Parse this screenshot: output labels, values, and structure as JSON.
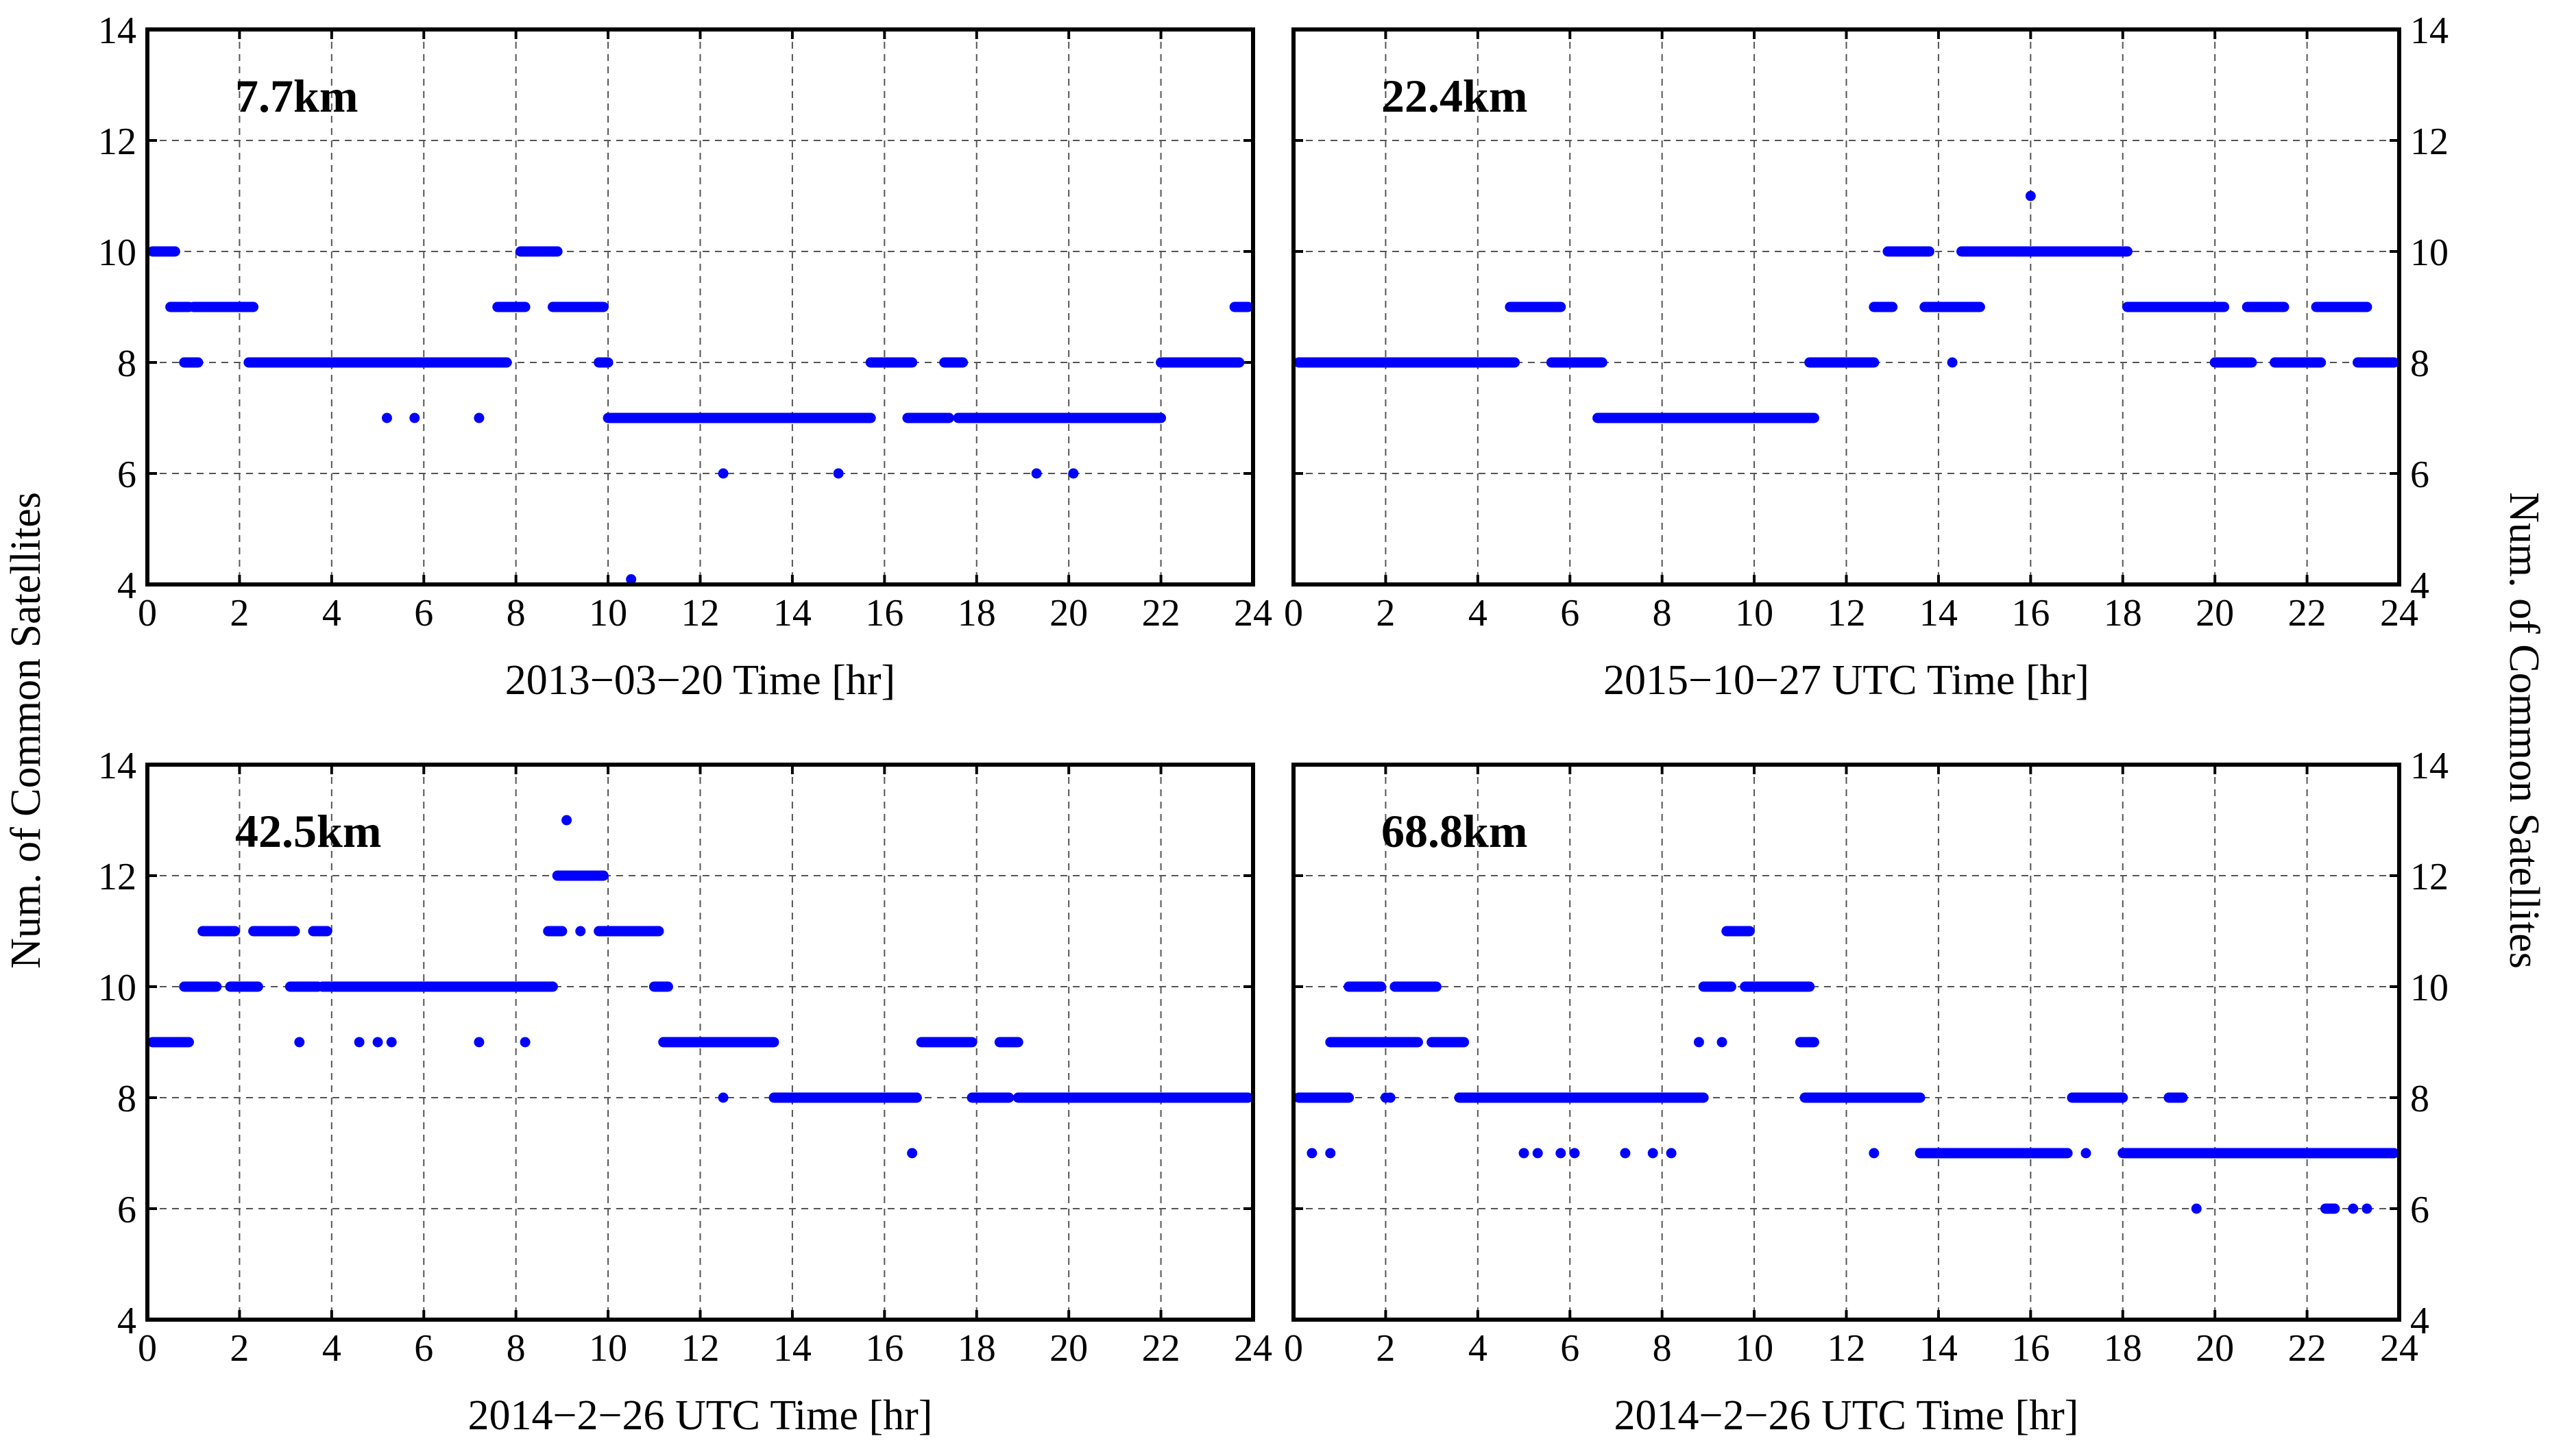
{
  "figure": {
    "ylabel_left": "Num. of Common Satellites",
    "ylabel_right": "Num. of Common Satellites",
    "marker_color": "#0000ff"
  },
  "chart_data": [
    {
      "type": "scatter",
      "panel": "top-left",
      "annotation": "7.7km",
      "xlabel": "2013−03−20 Time [hr]",
      "ylabel": "Num. of Common Satellites",
      "xlim": [
        0,
        24
      ],
      "ylim": [
        4,
        14
      ],
      "xticks": [
        0,
        2,
        4,
        6,
        8,
        10,
        12,
        14,
        16,
        18,
        20,
        22,
        24
      ],
      "yticks": [
        4,
        6,
        8,
        10,
        12,
        14
      ],
      "grid": true,
      "series": [
        {
          "name": "common satellites",
          "segments": [
            [
              0,
              0.6,
              10
            ],
            [
              0.5,
              0.9,
              9
            ],
            [
              0.8,
              1.1,
              8
            ],
            [
              1.0,
              2.3,
              9
            ],
            [
              2.2,
              7.8,
              8
            ],
            [
              7.6,
              8.2,
              9
            ],
            [
              8.1,
              8.9,
              10
            ],
            [
              8.8,
              9.9,
              9
            ],
            [
              9.8,
              10.0,
              8
            ],
            [
              10.0,
              15.7,
              7
            ],
            [
              15.7,
              16.6,
              8
            ],
            [
              16.5,
              17.4,
              7
            ],
            [
              17.3,
              17.7,
              8
            ],
            [
              17.6,
              22.0,
              7
            ],
            [
              22.0,
              23.7,
              8
            ],
            [
              23.6,
              24,
              9
            ]
          ],
          "points": [
            [
              5.2,
              7
            ],
            [
              5.8,
              7
            ],
            [
              7.2,
              7
            ],
            [
              10.5,
              4
            ],
            [
              12.5,
              6
            ],
            [
              15.0,
              6
            ],
            [
              19.3,
              6
            ],
            [
              20.1,
              6
            ]
          ]
        }
      ]
    },
    {
      "type": "scatter",
      "panel": "top-right",
      "annotation": "22.4km",
      "xlabel": "2015−10−27 UTC Time [hr]",
      "ylabel": "Num. of Common Satellites",
      "xlim": [
        0,
        24
      ],
      "ylim": [
        4,
        14
      ],
      "xticks": [
        0,
        2,
        4,
        6,
        8,
        10,
        12,
        14,
        16,
        18,
        20,
        22,
        24
      ],
      "yticks": [
        4,
        6,
        8,
        10,
        12,
        14
      ],
      "grid": true,
      "series": [
        {
          "name": "common satellites",
          "segments": [
            [
              0,
              4.8,
              8
            ],
            [
              4.7,
              5.8,
              9
            ],
            [
              5.6,
              6.7,
              8
            ],
            [
              6.6,
              11.3,
              7
            ],
            [
              11.2,
              12.6,
              8
            ],
            [
              12.6,
              13.0,
              9
            ],
            [
              12.9,
              13.8,
              10
            ],
            [
              13.7,
              14.9,
              9
            ],
            [
              14.5,
              18.1,
              10
            ],
            [
              18.1,
              20.2,
              9
            ],
            [
              20.0,
              20.8,
              8
            ],
            [
              20.7,
              21.5,
              9
            ],
            [
              21.3,
              22.3,
              8
            ],
            [
              22.2,
              23.3,
              9
            ],
            [
              23.1,
              24,
              8
            ]
          ],
          "points": [
            [
              16.0,
              11
            ],
            [
              14.3,
              8
            ]
          ]
        }
      ]
    },
    {
      "type": "scatter",
      "panel": "bottom-left",
      "annotation": "42.5km",
      "xlabel": "2014−2−26 UTC Time [hr]",
      "ylabel": "Num. of Common Satellites",
      "xlim": [
        0,
        24
      ],
      "ylim": [
        4,
        14
      ],
      "xticks": [
        0,
        2,
        4,
        6,
        8,
        10,
        12,
        14,
        16,
        18,
        20,
        22,
        24
      ],
      "yticks": [
        4,
        6,
        8,
        10,
        12,
        14
      ],
      "grid": true,
      "series": [
        {
          "name": "common satellites",
          "segments": [
            [
              0,
              0.9,
              9
            ],
            [
              0.8,
              1.5,
              10
            ],
            [
              1.2,
              1.9,
              11
            ],
            [
              1.8,
              2.4,
              10
            ],
            [
              2.3,
              3.2,
              11
            ],
            [
              3.1,
              3.7,
              10
            ],
            [
              3.6,
              3.9,
              11
            ],
            [
              3.8,
              8.8,
              10
            ],
            [
              8.7,
              9.0,
              11
            ],
            [
              8.9,
              9.9,
              12
            ],
            [
              9.8,
              11.1,
              11
            ],
            [
              11.0,
              11.3,
              10
            ],
            [
              11.2,
              13.6,
              9
            ],
            [
              13.6,
              16.7,
              8
            ],
            [
              16.8,
              17.9,
              9
            ],
            [
              17.9,
              18.7,
              8
            ],
            [
              18.5,
              18.9,
              9
            ],
            [
              18.9,
              24,
              8
            ]
          ],
          "points": [
            [
              9.1,
              13
            ],
            [
              9.4,
              11
            ],
            [
              3.3,
              9
            ],
            [
              4.6,
              9
            ],
            [
              5.0,
              9
            ],
            [
              5.3,
              9
            ],
            [
              7.2,
              9
            ],
            [
              8.2,
              9
            ],
            [
              12.5,
              8
            ],
            [
              16.6,
              7
            ]
          ]
        }
      ]
    },
    {
      "type": "scatter",
      "panel": "bottom-right",
      "annotation": "68.8km",
      "xlabel": "2014−2−26 UTC Time [hr]",
      "ylabel": "Num. of Common Satellites",
      "xlim": [
        0,
        24
      ],
      "ylim": [
        4,
        14
      ],
      "xticks": [
        0,
        2,
        4,
        6,
        8,
        10,
        12,
        14,
        16,
        18,
        20,
        22,
        24
      ],
      "yticks": [
        4,
        6,
        8,
        10,
        12,
        14
      ],
      "grid": true,
      "series": [
        {
          "name": "common satellites",
          "segments": [
            [
              0,
              1.2,
              8
            ],
            [
              0.8,
              1.3,
              9
            ],
            [
              1.2,
              1.9,
              10
            ],
            [
              1.2,
              2.7,
              9
            ],
            [
              2.2,
              3.1,
              10
            ],
            [
              3.0,
              3.7,
              9
            ],
            [
              3.6,
              8.9,
              8
            ],
            [
              8.9,
              9.5,
              10
            ],
            [
              9.4,
              9.9,
              11
            ],
            [
              9.8,
              11.2,
              10
            ],
            [
              11.0,
              11.3,
              9
            ],
            [
              11.1,
              13.6,
              8
            ],
            [
              13.6,
              16.8,
              7
            ],
            [
              16.9,
              18.0,
              8
            ],
            [
              18.0,
              18.8,
              7
            ],
            [
              18.8,
              24,
              7
            ],
            [
              19.0,
              19.3,
              8
            ],
            [
              22.4,
              22.6,
              6
            ]
          ],
          "points": [
            [
              0.4,
              7
            ],
            [
              0.8,
              7
            ],
            [
              2.0,
              8
            ],
            [
              5.0,
              7
            ],
            [
              5.3,
              7
            ],
            [
              5.8,
              7
            ],
            [
              6.1,
              7
            ],
            [
              7.2,
              7
            ],
            [
              7.8,
              7
            ],
            [
              8.2,
              7
            ],
            [
              8.8,
              9
            ],
            [
              9.3,
              9
            ],
            [
              12.6,
              7
            ],
            [
              17.2,
              7
            ],
            [
              19.6,
              6
            ],
            [
              22.5,
              6
            ],
            [
              23.0,
              6
            ],
            [
              23.3,
              6
            ],
            [
              2.1,
              8
            ]
          ]
        }
      ]
    }
  ]
}
